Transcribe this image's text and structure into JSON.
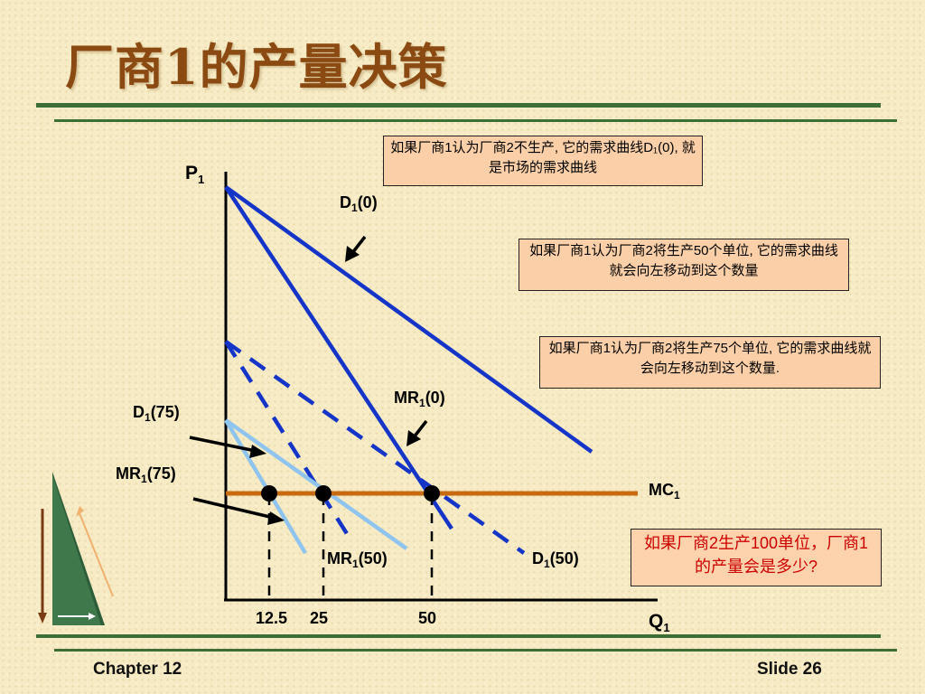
{
  "slide": {
    "title": "厂商1的产量决策",
    "footer_left": "Chapter 12",
    "footer_right": "Slide 26"
  },
  "notes": {
    "d10": "如果厂商1认为厂商2不生产, 它的需求曲线D₁(0), 就是市场的需求曲线",
    "d150": "如果厂商1认为厂商2将生产50个单位, 它的需求曲线就会向左移动到这个数量",
    "d175": "如果厂商1认为厂商2将生产75个单位, 它的需求曲线就会向左移动到这个数量.",
    "question": "如果厂商2生产100单位，厂商1的产量会是多少?"
  },
  "diagram": {
    "y_axis_label": "P",
    "y_axis_sub": "1",
    "x_axis_label": "Q",
    "x_axis_sub": "1",
    "x_ticks": [
      "12.5",
      "25",
      "50"
    ],
    "curves": {
      "d1_0": {
        "name": "D",
        "sub": "1",
        "arg": "(0)"
      },
      "mr1_0": {
        "name": "MR",
        "sub": "1",
        "arg": "(0)"
      },
      "d1_50": {
        "name": "D",
        "sub": "1",
        "arg": "(50)"
      },
      "mr1_50": {
        "name": "MR",
        "sub": "1",
        "arg": "(50)"
      },
      "d1_75": {
        "name": "D",
        "sub": "1",
        "arg": "(75)"
      },
      "mr1_75": {
        "name": "MR",
        "sub": "1",
        "arg": "(75)"
      },
      "mc1": {
        "name": "MC",
        "sub": "1",
        "arg": ""
      }
    },
    "colors": {
      "dark_blue": "#1535c8",
      "light_blue": "#8fc4ef",
      "mc": "#c86a10",
      "axis": "#000000"
    }
  }
}
